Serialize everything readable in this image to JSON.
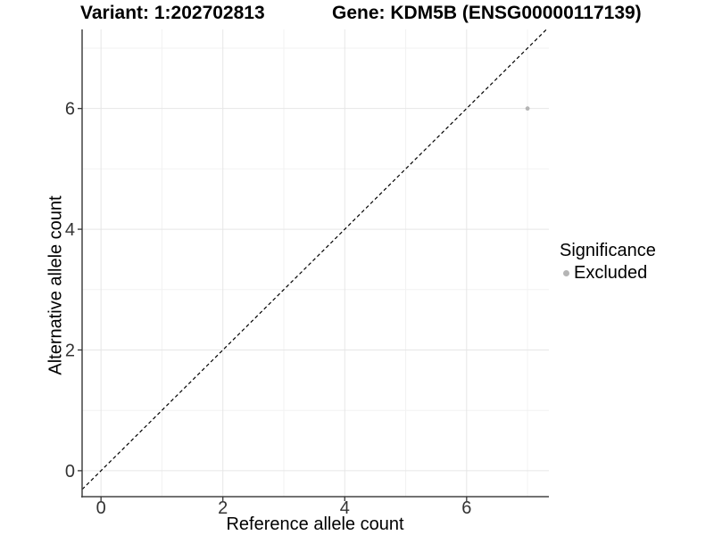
{
  "figure": {
    "title": {
      "variant": "Variant: 1:202702813",
      "gene": "Gene: KDM5B (ENSG00000117139)"
    },
    "x_axis_label": "Reference allele count",
    "y_axis_label": "Alternative allele count",
    "legend": {
      "title": "Significance",
      "items": [
        {
          "label": "Excluded",
          "color": "#b5b5b5"
        }
      ]
    }
  },
  "chart_data": {
    "type": "scatter",
    "title": "Variant: 1:202702813   Gene: KDM5B (ENSG00000117139)",
    "xlabel": "Reference allele count",
    "ylabel": "Alternative allele count",
    "xlim": [
      -0.31,
      7.35
    ],
    "ylim": [
      -0.43,
      7.31
    ],
    "x_ticks": [
      0,
      2,
      4,
      6
    ],
    "y_ticks": [
      0,
      2,
      4,
      6
    ],
    "x_minor_ticks": [
      1,
      3,
      5,
      7
    ],
    "y_minor_ticks": [
      1,
      3,
      5,
      7
    ],
    "grid": true,
    "legend_position": "right",
    "series": [
      {
        "name": "Excluded",
        "color": "#b5b5b5",
        "points": [
          {
            "x": 7,
            "y": 6
          }
        ]
      }
    ],
    "reference_line": {
      "type": "identity-diagonal",
      "slope": 1,
      "intercept": 0,
      "style": "dashed",
      "color": "#000000"
    }
  },
  "colors": {
    "background": "#ffffff",
    "axis_line": "#444444",
    "tick_mark": "#333333",
    "tick_label": "#333333",
    "grid_major": "#e6e6e6",
    "grid_minor": "#f2f2f2"
  }
}
